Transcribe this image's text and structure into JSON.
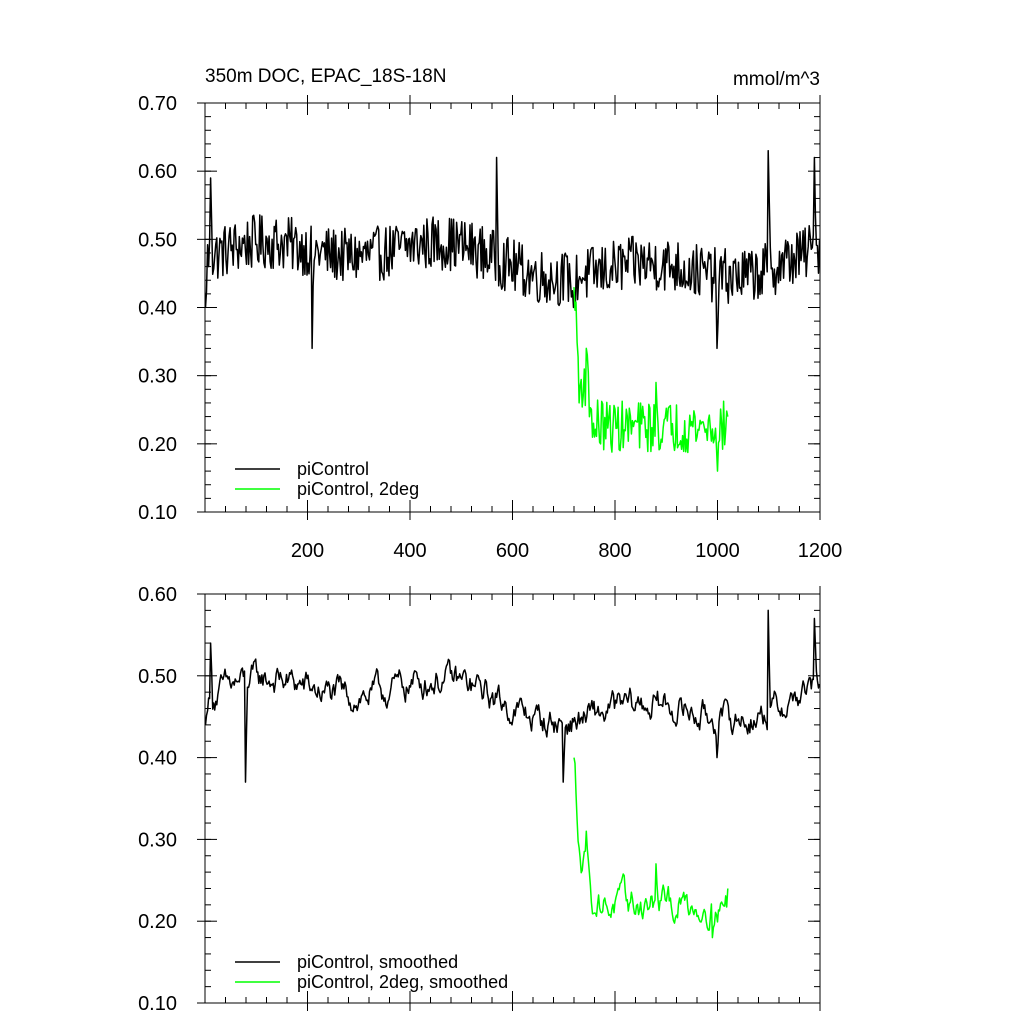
{
  "chart_data": [
    {
      "type": "line",
      "title": "350m DOC, EPAC_18S-18N",
      "units": "mmol/m^3",
      "xlim": [
        0,
        1200
      ],
      "ylim": [
        0.1,
        0.7
      ],
      "xticks": [
        200,
        400,
        600,
        800,
        1000,
        1200
      ],
      "xtick_labels": [
        "200",
        "400",
        "600",
        "800",
        "1000",
        "1200"
      ],
      "yticks": [
        0.1,
        0.2,
        0.3,
        0.4,
        0.5,
        0.6,
        0.7
      ],
      "ytick_labels": [
        "0.10",
        "0.20",
        "0.30",
        "0.40",
        "0.50",
        "0.60",
        "0.70"
      ],
      "legend_position": "bottom-left",
      "series": [
        {
          "name": "piControl",
          "color": "#000000",
          "x_start": 1,
          "x_end": 1200,
          "approx_mean": 0.47,
          "approx_range": [
            0.34,
            0.63
          ],
          "notable_points": [
            [
              1,
              0.4
            ],
            [
              12,
              0.59
            ],
            [
              210,
              0.34
            ],
            [
              570,
              0.62
            ],
            [
              720,
              0.4
            ],
            [
              1000,
              0.34
            ],
            [
              1100,
              0.63
            ],
            [
              1190,
              0.62
            ]
          ]
        },
        {
          "name": "piControl, 2deg",
          "color": "#00ff00",
          "x_start": 720,
          "x_end": 1020,
          "approx_mean": 0.225,
          "approx_range": [
            0.16,
            0.43
          ],
          "notable_points": [
            [
              720,
              0.43
            ],
            [
              730,
              0.26
            ],
            [
              745,
              0.34
            ],
            [
              760,
              0.21
            ],
            [
              880,
              0.29
            ],
            [
              1000,
              0.16
            ],
            [
              1020,
              0.24
            ]
          ]
        }
      ]
    },
    {
      "type": "line",
      "ylim": [
        0.1,
        0.6
      ],
      "xlim": [
        0,
        1200
      ],
      "yticks": [
        0.1,
        0.2,
        0.3,
        0.4,
        0.5,
        0.6
      ],
      "ytick_labels": [
        "0.10",
        "0.20",
        "0.30",
        "0.40",
        "0.50",
        "0.60"
      ],
      "legend_position": "bottom-left",
      "series": [
        {
          "name": "piControl, smoothed",
          "color": "#000000",
          "x_start": 1,
          "x_end": 1200,
          "approx_mean": 0.47,
          "approx_range": [
            0.37,
            0.58
          ],
          "notable_points": [
            [
              1,
              0.44
            ],
            [
              12,
              0.54
            ],
            [
              80,
              0.37
            ],
            [
              700,
              0.37
            ],
            [
              1000,
              0.4
            ],
            [
              1100,
              0.58
            ],
            [
              1190,
              0.57
            ],
            [
              1200,
              0.49
            ]
          ]
        },
        {
          "name": "piControl, 2deg, smoothed",
          "color": "#00ff00",
          "x_start": 720,
          "x_end": 1020,
          "approx_mean": 0.22,
          "approx_range": [
            0.18,
            0.4
          ],
          "notable_points": [
            [
              720,
              0.4
            ],
            [
              730,
              0.29
            ],
            [
              745,
              0.31
            ],
            [
              760,
              0.21
            ],
            [
              880,
              0.27
            ],
            [
              990,
              0.18
            ],
            [
              1020,
              0.24
            ]
          ]
        }
      ]
    }
  ]
}
